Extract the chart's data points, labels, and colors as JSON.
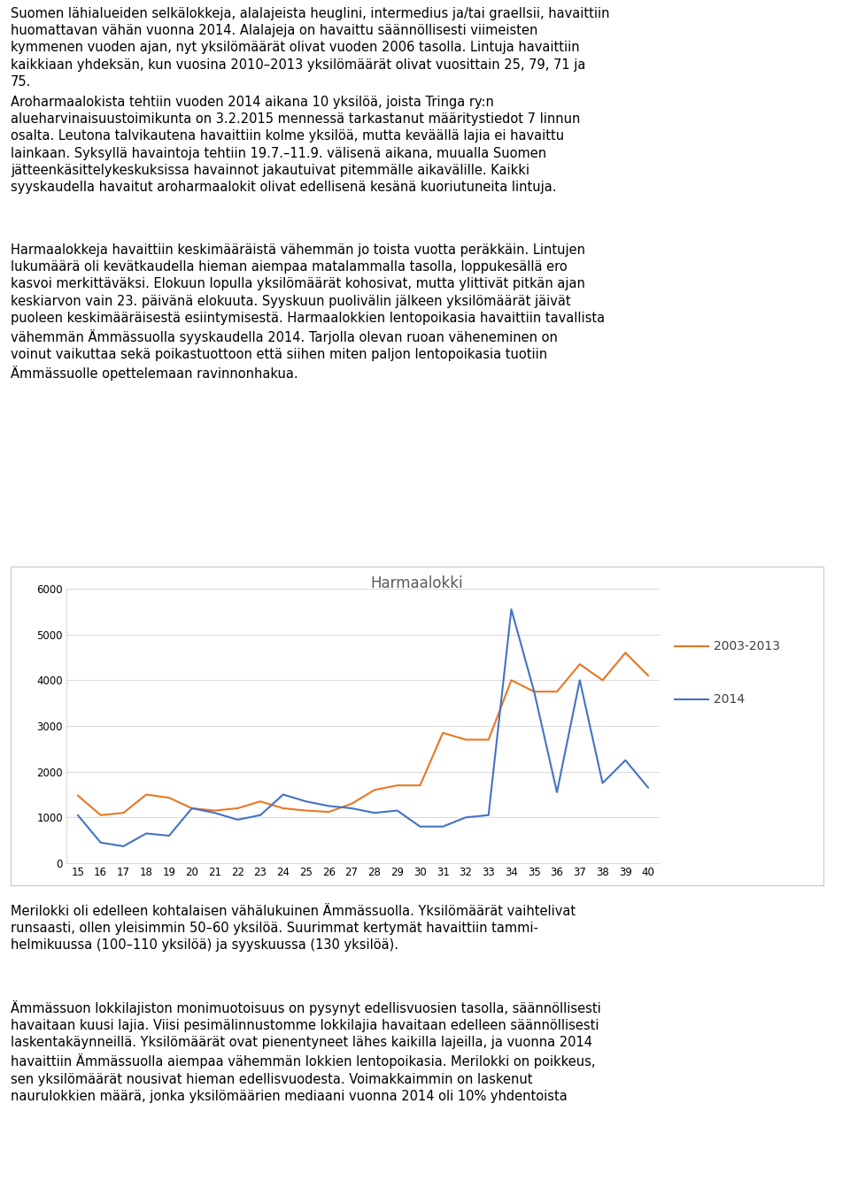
{
  "title": "Harmaalokki",
  "x_labels": [
    15,
    16,
    17,
    18,
    19,
    20,
    21,
    22,
    23,
    24,
    25,
    26,
    27,
    28,
    29,
    30,
    31,
    32,
    33,
    34,
    35,
    36,
    37,
    38,
    39,
    40
  ],
  "series_2003_2013": [
    1480,
    1050,
    1100,
    1500,
    1430,
    1200,
    1150,
    1200,
    1350,
    1200,
    1150,
    1120,
    1300,
    1600,
    1700,
    1700,
    2850,
    2700,
    2700,
    4000,
    3750,
    3750,
    4350,
    4000,
    4600,
    4100
  ],
  "series_2014": [
    1050,
    450,
    370,
    650,
    600,
    1200,
    1100,
    950,
    1050,
    1500,
    1350,
    1250,
    1200,
    1100,
    1150,
    800,
    800,
    1000,
    1050,
    5550,
    3750,
    1550,
    4000,
    1750,
    2250,
    1650
  ],
  "color_2003_2013": "#E87722",
  "color_2014": "#4472C4",
  "legend_2003_2013": "2003-2013",
  "legend_2014": "2014",
  "ylim": [
    0,
    6000
  ],
  "yticks": [
    0,
    1000,
    2000,
    3000,
    4000,
    5000,
    6000
  ],
  "page_bg_color": "#ffffff",
  "grid_color": "#d9d9d9",
  "border_color": "#c8c8c8",
  "title_fontsize": 12,
  "tick_fontsize": 8.5,
  "legend_fontsize": 10,
  "text_fontsize": 10.5,
  "text1": "Suomen lähialueiden selkälokkeja, alalajeista heuglini, intermedius ja/tai graellsii, havaittiin\nhuomattavan vähän vuonna 2014. Alalajeja on havaittu säännöllisesti viimeisten\nkymmenen vuoden ajan, nyt yksilömäärät olivat vuoden 2006 tasolla. Lintuja havaittiin\nkaikkiaan yhdeksän, kun vuosina 2010–2013 yksilömäärät olivat vuosittain 25, 79, 71 ja\n75.",
  "text2": "Aroharmaalokista tehtiin vuoden 2014 aikana 10 yksilöä, joista Tringa ry:n\nalueharvinaisuustoimikunta on 3.2.2015 mennessä tarkastanut määritystiedot 7 linnun\nosalta. Leutona talvikautena havaittiin kolme yksilöä, mutta keväällä lajia ei havaittu\nlainkaan. Syksyllä havaintoja tehtiin 19.7.–11.9. välisenä aikana, muualla Suomen\njätteenkäsittelykeskuksissa havainnot jakautuivat pitemmälle aikavälille. Kaikki\nsyyskaudella havaitut aroharmaalokit olivat edellisenä kesänä kuoriutuneita lintuja.",
  "text3": "Harmaalokkeja havaittiin keskimääräistä vähemmän jo toista vuotta peräkkäin. Lintujen\nlukumäärä oli kevätkaudella hieman aiempaa matalammalla tasolla, loppukesällä ero\nkasvoi merkittäväksi. Elokuun lopulla yksilömäärät kohosivat, mutta ylittivät pitkän ajan\nkeskiarvon vain 23. päivänä elokuuta. Syyskuun puolivälin jälkeen yksilömäärät jäivät\npuoleen keskimääräisestä esiintymisestä. Harmaalokkien lentopoikasia havaittiin tavallista\nvähemmän Ämmässuolla syyskaudella 2014. Tarjolla olevan ruoan väheneminen on\nvoinut vaikuttaa sekä poikastuottoon että siihen miten paljon lentopoikasia tuotiin\nÄmmässuolle opettelemaan ravinnonhakua.",
  "text4": "Merilokki oli edelleen kohtalaisen vähälukuinen Ämmässuolla. Yksilömäärät vaihtelivat\nrunsaasti, ollen yleisimmin 50–60 yksilöä. Suurimmat kertymät havaittiin tammi-\nhelmikuussa (100–110 yksilöä) ja syyskuussa (130 yksilöä).",
  "text5": "Ämmässuon lokkilajiston monimuotoisuus on pysynyt edellisvuosien tasolla, säännöllisesti\nhavaitaan kuusi lajia. Viisi pesimälinnustomme lokkilajia havaitaan edelleen säännöllisesti\nlaskentakäynneillä. Yksilömäärät ovat pienentyneet lähes kaikilla lajeilla, ja vuonna 2014\nhavaittiin Ämmässuolla aiempaa vähemmän lokkien lentopoikasia. Merilokki on poikkeus,\nsen yksilömäärät nousivat hieman edellisvuodesta. Voimakkaimmin on laskenut\nnaurulokkien määrä, jonka yksilömäärien mediaani vuonna 2014 oli 10% yhdentoista"
}
